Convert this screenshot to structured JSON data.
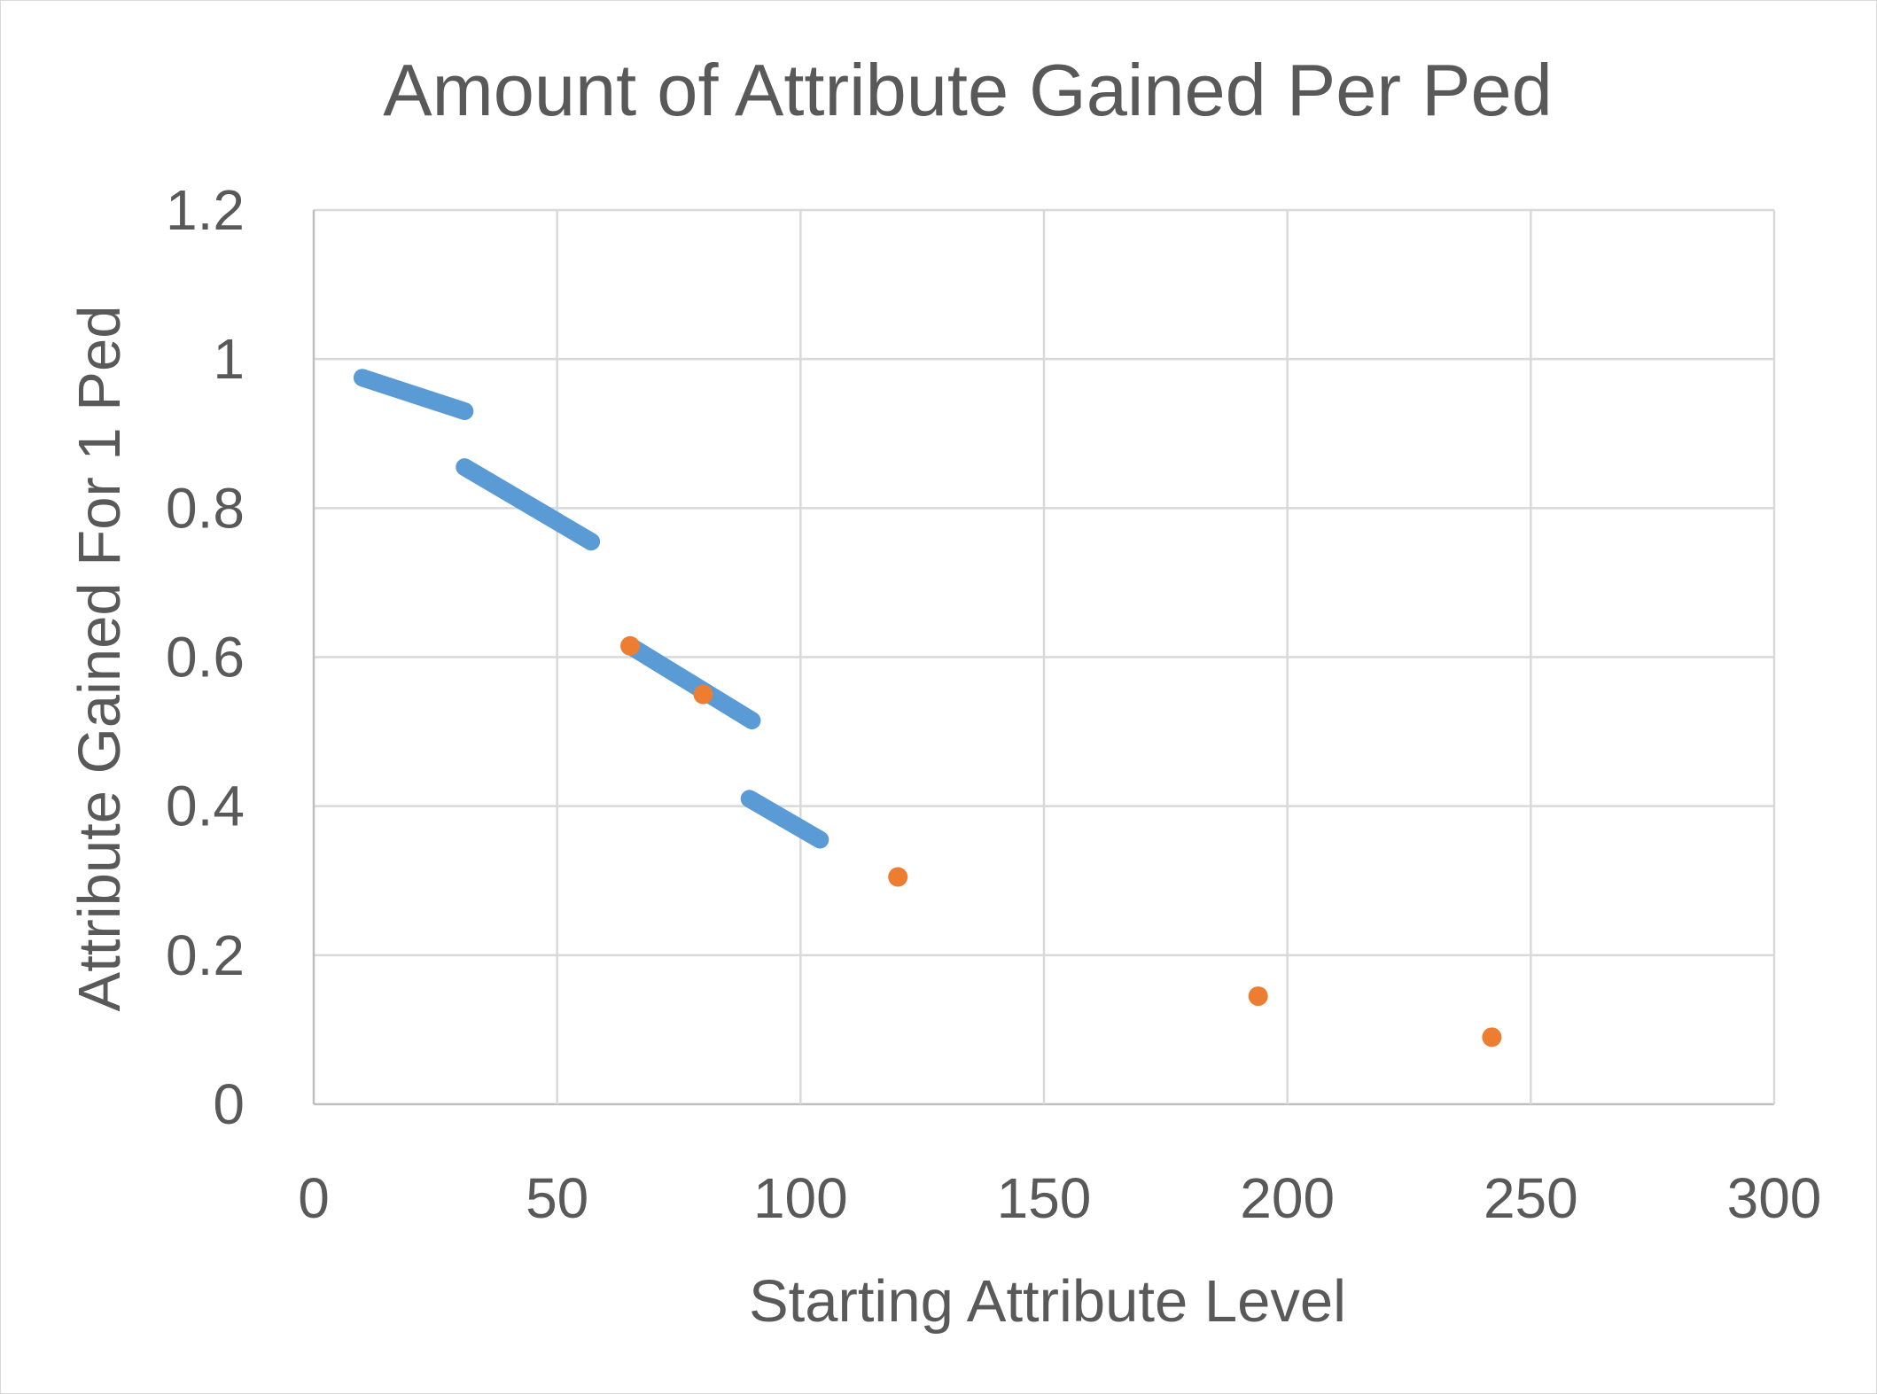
{
  "chart_data": {
    "type": "scatter",
    "title": "Amount of Attribute Gained Per Ped",
    "xlabel": "Starting Attribute Level",
    "ylabel": "Attribute Gained For 1 Ped",
    "xlim": [
      0,
      300
    ],
    "ylim": [
      0,
      1.2
    ],
    "xticks": [
      0,
      50,
      100,
      150,
      200,
      250,
      300
    ],
    "yticks": [
      0,
      0.2,
      0.4,
      0.6,
      0.8,
      1,
      1.2
    ],
    "ytick_labels": [
      "0",
      "0.2",
      "0.4",
      "0.6",
      "0.8",
      "1",
      "1.2"
    ],
    "xtick_labels": [
      "0",
      "50",
      "100",
      "150",
      "200",
      "250",
      "300"
    ],
    "grid": true,
    "legend": "none",
    "series": [
      {
        "color": "#5b9bd5",
        "marker": "circle",
        "segments": [
          {
            "x": [
              10,
              31
            ],
            "y": [
              0.975,
              0.93
            ]
          },
          {
            "x": [
              31,
              57
            ],
            "y": [
              0.855,
              0.755
            ]
          },
          {
            "x": [
              65,
              90
            ],
            "y": [
              0.615,
              0.515
            ]
          },
          {
            "x": [
              89.5,
              104
            ],
            "y": [
              0.41,
              0.355
            ]
          }
        ]
      },
      {
        "color": "#ed7d31",
        "marker": "circle",
        "x": [
          65,
          80,
          120,
          194,
          242
        ],
        "y": [
          0.615,
          0.55,
          0.305,
          0.145,
          0.09
        ]
      }
    ]
  }
}
